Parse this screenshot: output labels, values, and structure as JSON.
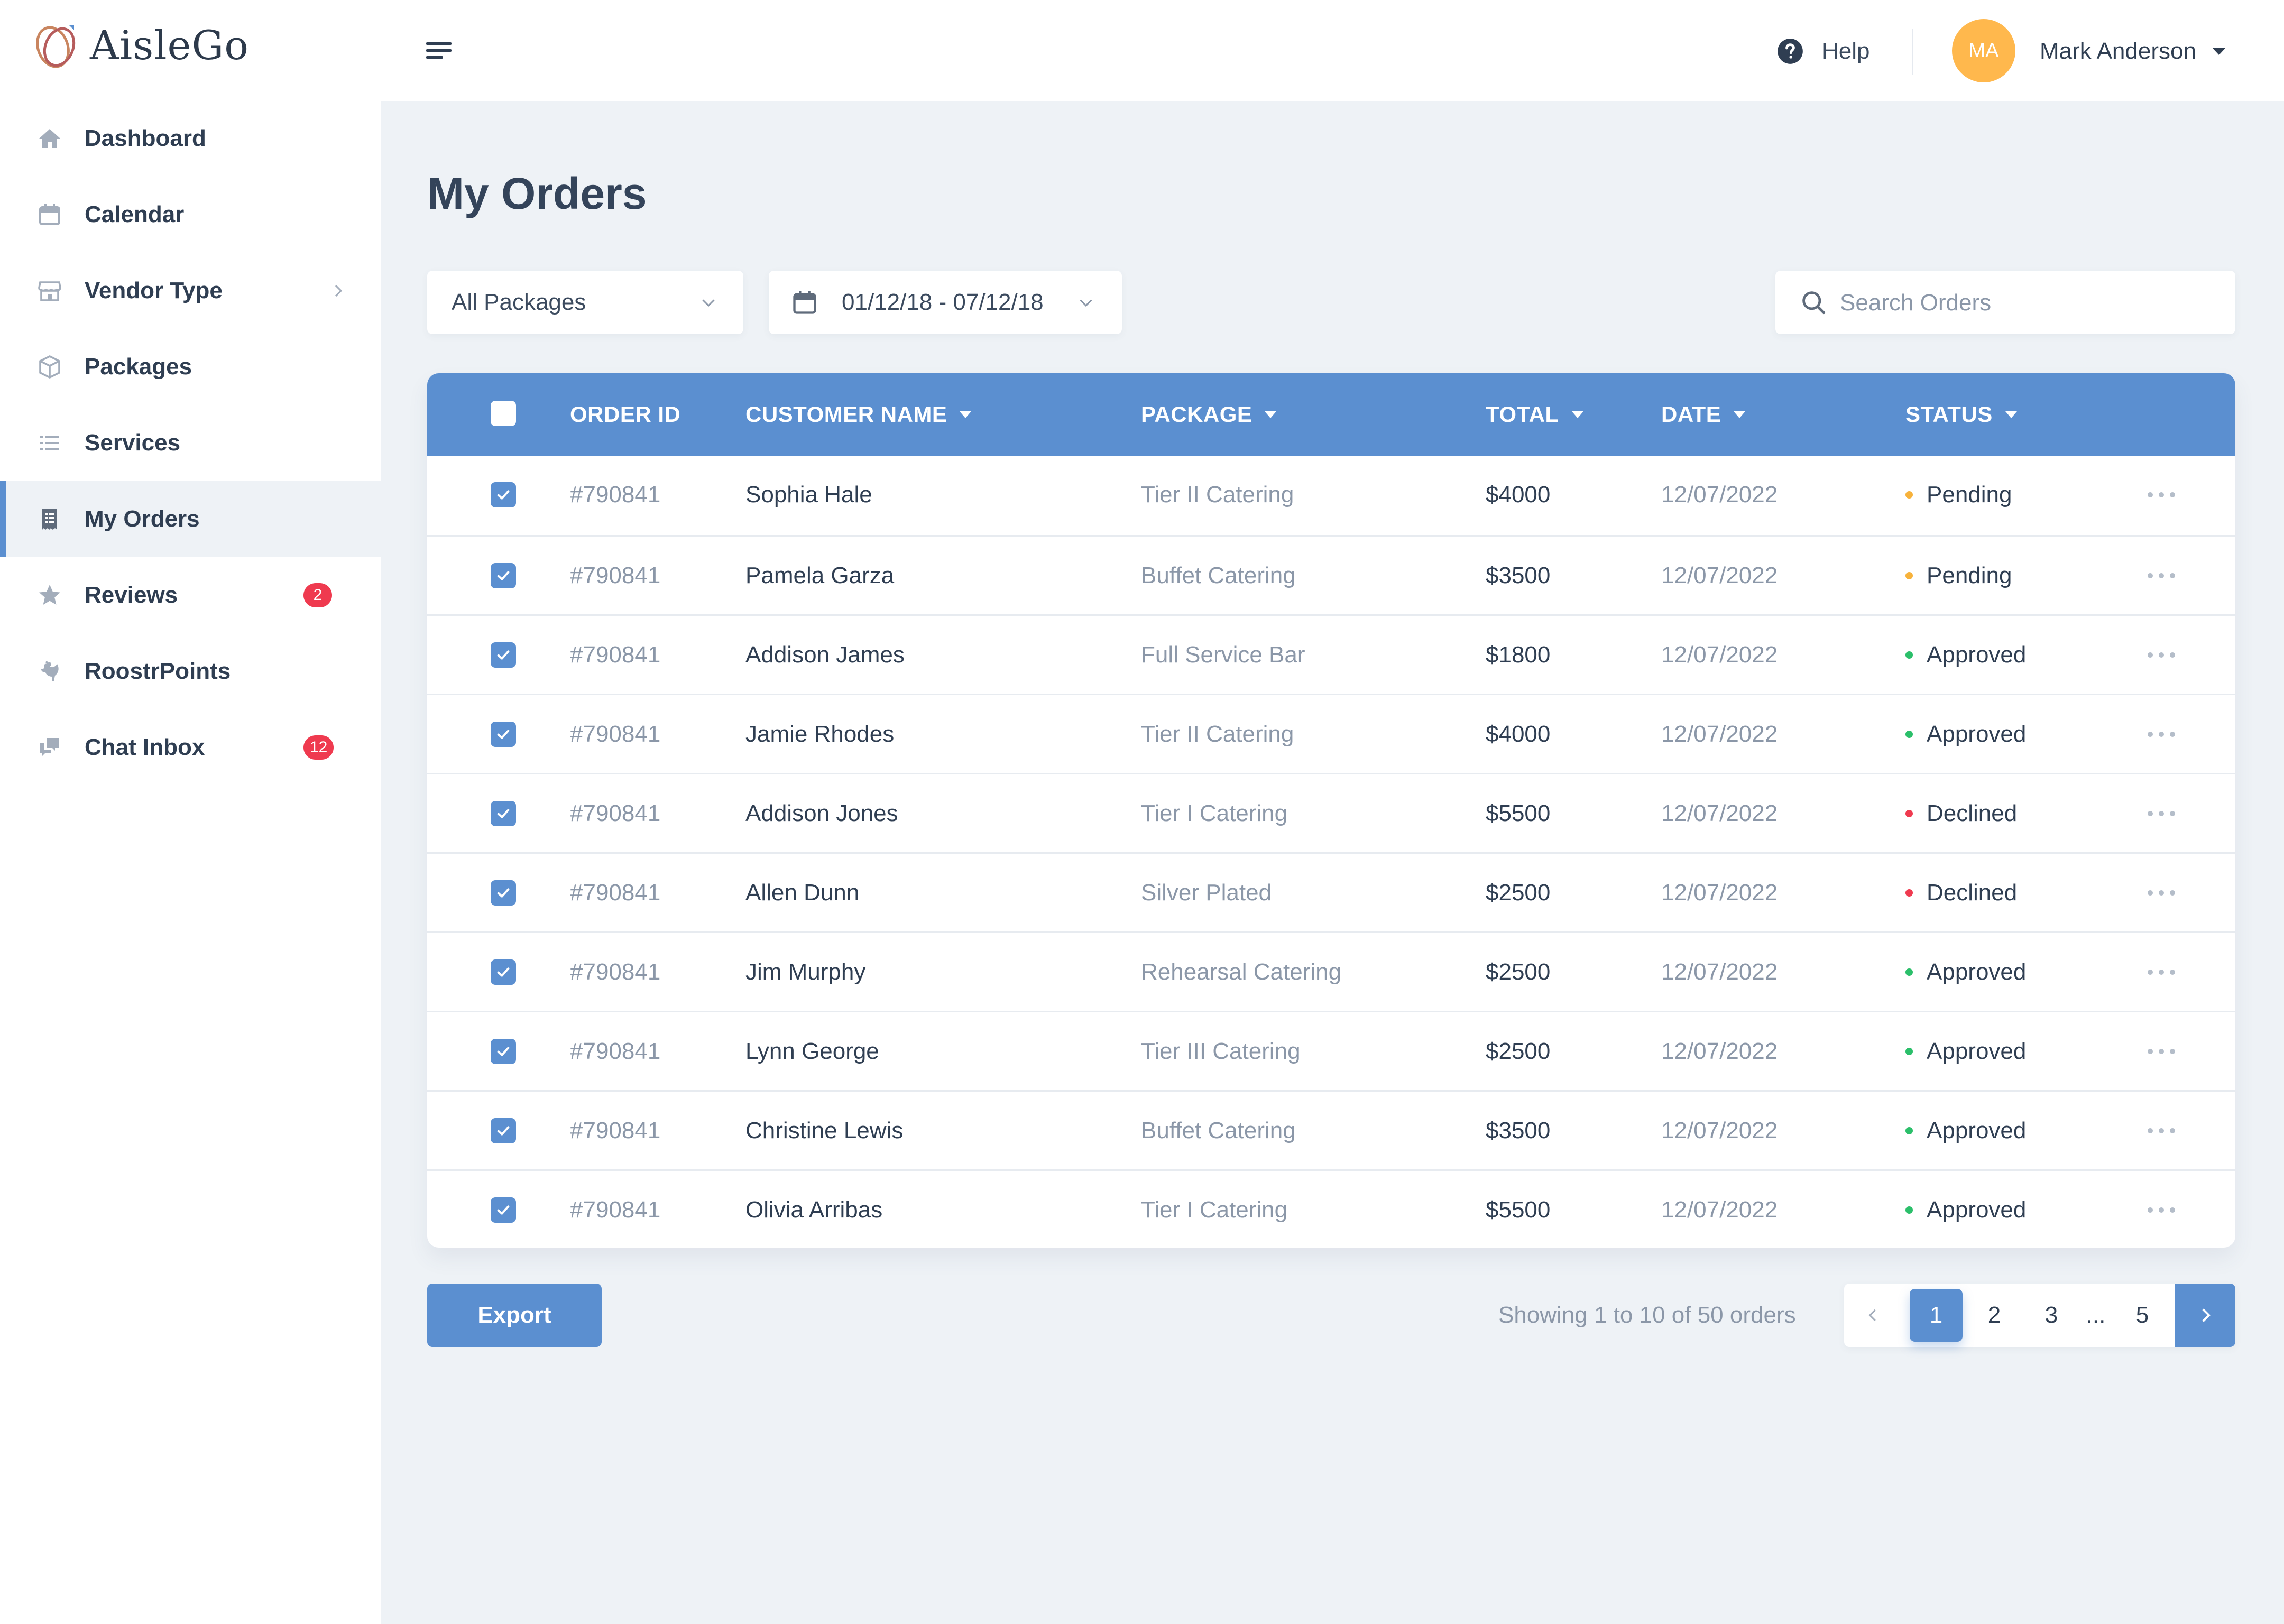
{
  "app": {
    "name": "AisleGo"
  },
  "sidebar": {
    "items": [
      {
        "label": "Dashboard",
        "icon": "home-icon"
      },
      {
        "label": "Calendar",
        "icon": "calendar-icon"
      },
      {
        "label": "Vendor Type",
        "icon": "storefront-icon",
        "has_chevron": true
      },
      {
        "label": "Packages",
        "icon": "box-icon"
      },
      {
        "label": "Services",
        "icon": "list-icon"
      },
      {
        "label": "My Orders",
        "icon": "receipt-icon",
        "active": true
      },
      {
        "label": "Reviews",
        "icon": "star-icon",
        "badge": "2"
      },
      {
        "label": "RoostrPoints",
        "icon": "rooster-icon"
      },
      {
        "label": "Chat Inbox",
        "icon": "chat-icon",
        "badge": "12"
      }
    ]
  },
  "header": {
    "help_label": "Help",
    "user_initials": "MA",
    "user_name": "Mark Anderson"
  },
  "main": {
    "title": "My Orders",
    "filters": {
      "package": "All Packages",
      "date_range": "01/12/18 - 07/12/18",
      "search_placeholder": "Search Orders"
    },
    "table": {
      "columns": [
        "ORDER ID",
        "CUSTOMER NAME",
        "PACKAGE",
        "TOTAL",
        "DATE",
        "STATUS"
      ],
      "rows": [
        {
          "id": "#790841",
          "name": "Sophia Hale",
          "package": "Tier II Catering",
          "total": "$4000",
          "date": "12/07/2022",
          "status": "Pending",
          "checked": true
        },
        {
          "id": "#790841",
          "name": "Pamela Garza",
          "package": "Buffet Catering",
          "total": "$3500",
          "date": "12/07/2022",
          "status": "Pending",
          "checked": true
        },
        {
          "id": "#790841",
          "name": "Addison James",
          "package": "Full Service Bar",
          "total": "$1800",
          "date": "12/07/2022",
          "status": "Approved",
          "checked": true
        },
        {
          "id": "#790841",
          "name": "Jamie Rhodes",
          "package": "Tier II Catering",
          "total": "$4000",
          "date": "12/07/2022",
          "status": "Approved",
          "checked": true
        },
        {
          "id": "#790841",
          "name": "Addison Jones",
          "package": "Tier I Catering",
          "total": "$5500",
          "date": "12/07/2022",
          "status": "Declined",
          "checked": true
        },
        {
          "id": "#790841",
          "name": "Allen Dunn",
          "package": "Silver Plated",
          "total": "$2500",
          "date": "12/07/2022",
          "status": "Declined",
          "checked": true
        },
        {
          "id": "#790841",
          "name": "Jim Murphy",
          "package": "Rehearsal Catering",
          "total": "$2500",
          "date": "12/07/2022",
          "status": "Approved",
          "checked": true
        },
        {
          "id": "#790841",
          "name": "Lynn George",
          "package": "Tier III Catering",
          "total": "$2500",
          "date": "12/07/2022",
          "status": "Approved",
          "checked": true
        },
        {
          "id": "#790841",
          "name": "Christine Lewis",
          "package": "Buffet Catering",
          "total": "$3500",
          "date": "12/07/2022",
          "status": "Approved",
          "checked": true
        },
        {
          "id": "#790841",
          "name": "Olivia Arribas",
          "package": "Tier I Catering",
          "total": "$5500",
          "date": "12/07/2022",
          "status": "Approved",
          "checked": true
        }
      ]
    },
    "status_colors": {
      "Pending": "#f7b23b",
      "Approved": "#2bbf6a",
      "Declined": "#ef3a4f"
    },
    "footer": {
      "export_label": "Export",
      "showing_text": "Showing 1 to 10 of 50 orders",
      "pages": [
        "1",
        "2",
        "3",
        "...",
        "5"
      ],
      "current_page": "1"
    }
  },
  "colors": {
    "accent": "#5b8fd0",
    "badge": "#ef3a4f",
    "avatar": "#ffb84d",
    "background": "#eef2f6"
  }
}
